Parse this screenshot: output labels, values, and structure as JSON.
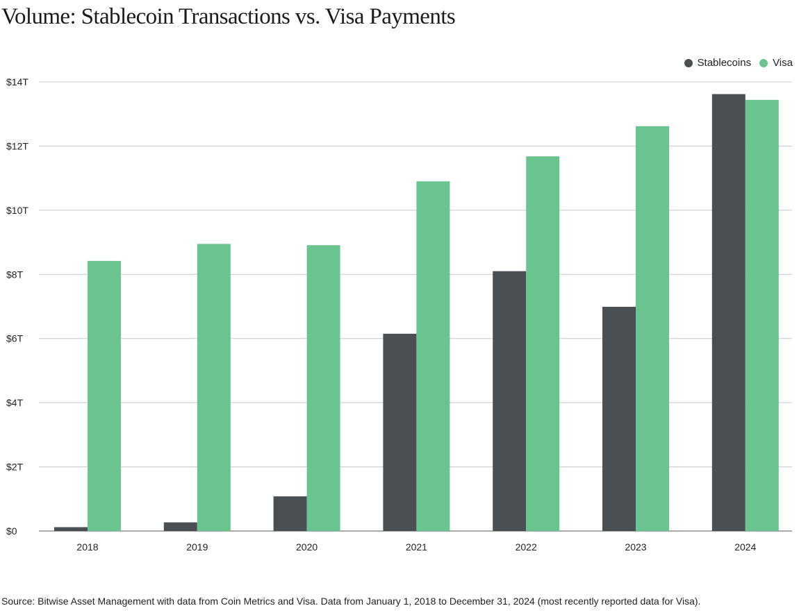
{
  "title": "Volume: Stablecoin Transactions vs. Visa Payments",
  "source": "Source: Bitwise Asset Management with data from Coin Metrics and Visa. Data from January 1, 2018 to December 31, 2024 (most recently reported data for Visa).",
  "colors": {
    "stablecoins": "#4a4f54",
    "visa": "#69c48f",
    "grid": "#c8c8c8",
    "axis": "#555555"
  },
  "legend": [
    {
      "label": "Stablecoins",
      "color": "#4a4f54"
    },
    {
      "label": "Visa",
      "color": "#69c48f"
    }
  ],
  "chart_data": {
    "type": "bar",
    "categories": [
      "2018",
      "2019",
      "2020",
      "2021",
      "2022",
      "2023",
      "2024"
    ],
    "series": [
      {
        "name": "Stablecoins",
        "values": [
          0.12,
          0.27,
          1.08,
          6.15,
          8.1,
          6.99,
          13.62
        ]
      },
      {
        "name": "Visa",
        "values": [
          8.42,
          8.95,
          8.91,
          10.9,
          11.68,
          12.62,
          13.44
        ]
      }
    ],
    "ylim": [
      0,
      14
    ],
    "yticks": [
      0,
      2,
      4,
      6,
      8,
      10,
      12,
      14
    ],
    "ytick_labels": [
      "$0",
      "$2T",
      "$4T",
      "$6T",
      "$8T",
      "$10T",
      "$12T",
      "$14T"
    ],
    "grid": true,
    "legend_position": "top-right",
    "xlabel": "",
    "ylabel": ""
  }
}
